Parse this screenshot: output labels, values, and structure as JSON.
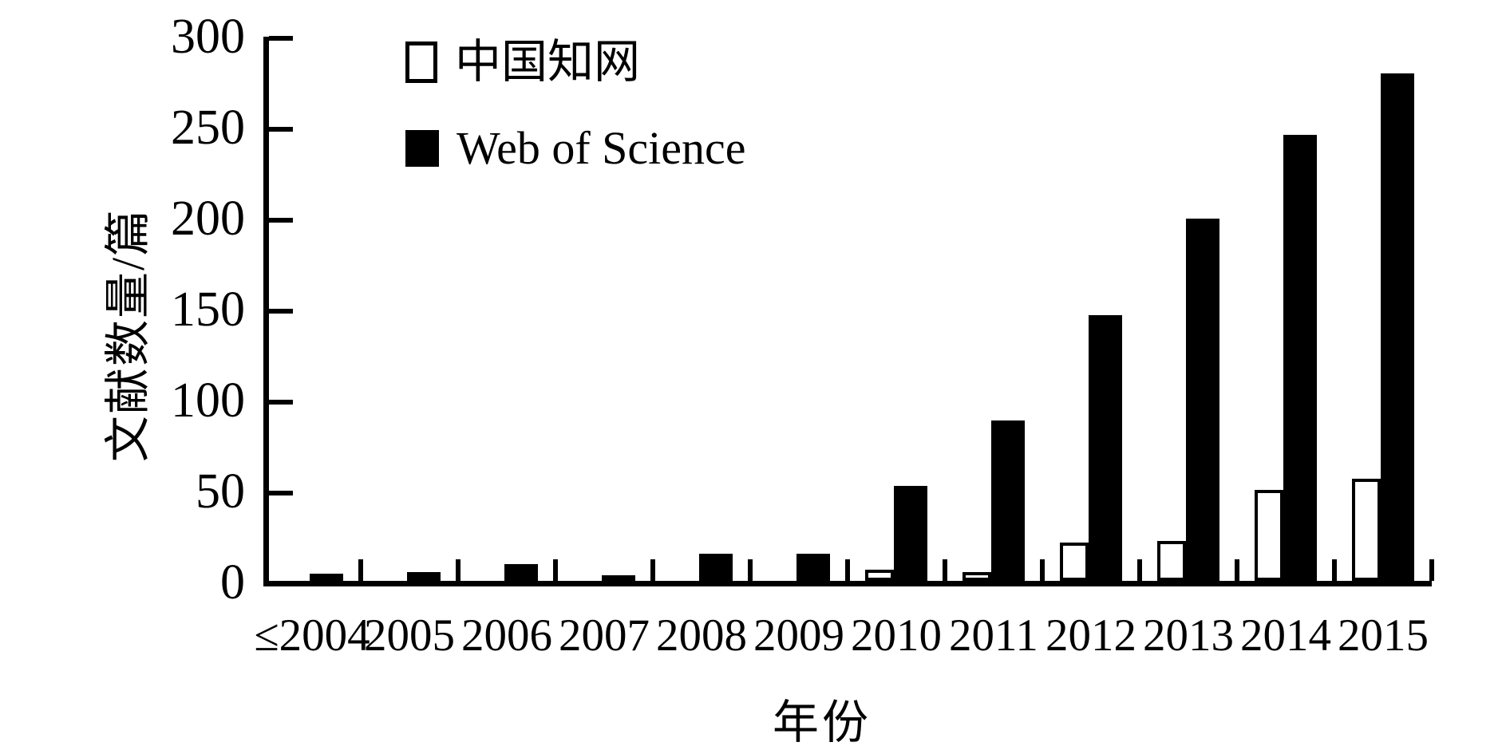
{
  "chart_data": {
    "type": "bar",
    "title": "",
    "categories": [
      "≤2004",
      "2005",
      "2006",
      "2007",
      "2008",
      "2009",
      "2010",
      "2011",
      "2012",
      "2013",
      "2014",
      "2015"
    ],
    "series": [
      {
        "name": "中国知网",
        "fill": "#ffffff",
        "values": [
          0,
          0,
          0,
          0,
          0,
          0,
          6,
          5,
          21,
          22,
          50,
          56
        ]
      },
      {
        "name": "Web of Science",
        "fill": "#000000",
        "values": [
          4,
          5,
          9,
          3,
          15,
          15,
          52,
          88,
          146,
          199,
          245,
          279
        ]
      }
    ],
    "xlabel": "年份",
    "ylabel": "文献数量/篇",
    "ylim": [
      0,
      300
    ],
    "yticks": [
      0,
      50,
      100,
      150,
      200,
      250,
      300
    ],
    "legend_position": "top-left-inside",
    "grid": false,
    "bar_style": {
      "series1": "open-white-black-outline",
      "series2": "solid-black"
    }
  },
  "colors": {
    "foreground": "#000000",
    "background": "#ffffff"
  }
}
